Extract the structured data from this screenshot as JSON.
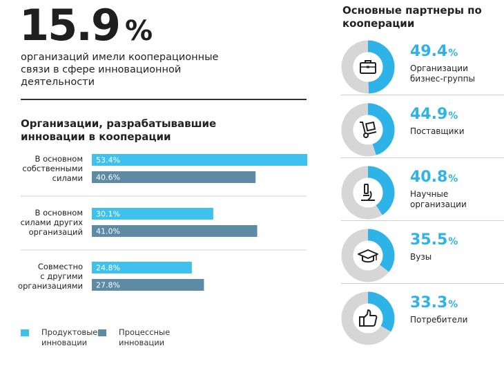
{
  "headline": {
    "value": "15.9",
    "percent_sign": "%",
    "text": "организаций имели кооперационные связи в сфере инновационной деятельности"
  },
  "chart_title": "Организации, разрабатывавшие инновации в кооперации",
  "legend": {
    "product": "Продуктовые инновации",
    "process": "Процессные инновации"
  },
  "colors": {
    "product": "#3fc1f0",
    "process": "#5e8aa4",
    "accent": "#2eb3e8",
    "donut_track": "#d6d6d6"
  },
  "chart_data": {
    "type": "bar",
    "orientation": "horizontal",
    "title": "Организации, разрабатывавшие инновации в кооперации",
    "categories": [
      "В основном собственными силами",
      "В основном силами других организаций",
      "Совместно с другими организациями"
    ],
    "category_lines": [
      [
        "В основном",
        "собственными",
        "силами"
      ],
      [
        "В основном",
        "силами других",
        "организаций"
      ],
      [
        "Совместно",
        "с другими",
        "организациями"
      ]
    ],
    "series": [
      {
        "name": "Продуктовые инновации",
        "values": [
          53.4,
          30.1,
          24.8
        ],
        "labels": [
          "53.4%",
          "30.1%",
          "24.8%"
        ]
      },
      {
        "name": "Процессные инновации",
        "values": [
          40.6,
          41.0,
          27.8
        ],
        "labels": [
          "40.6%",
          "41.0%",
          "27.8%"
        ]
      }
    ],
    "xlim": [
      0,
      53.4
    ]
  },
  "partners": {
    "title": "Основные партнеры по кооперации",
    "items": [
      {
        "value": 49.4,
        "value_text": "49.4",
        "percent_sign": "%",
        "label": "Организации бизнес-группы",
        "icon": "briefcase-icon"
      },
      {
        "value": 44.9,
        "value_text": "44.9",
        "percent_sign": "%",
        "label": "Поставщики",
        "icon": "hand-truck-icon"
      },
      {
        "value": 40.8,
        "value_text": "40.8",
        "percent_sign": "%",
        "label": "Научные организации",
        "icon": "microscope-icon"
      },
      {
        "value": 35.5,
        "value_text": "35.5",
        "percent_sign": "%",
        "label": "Вузы",
        "icon": "graduation-cap-icon"
      },
      {
        "value": 33.3,
        "value_text": "33.3",
        "percent_sign": "%",
        "label": "Потребители",
        "icon": "thumbs-up-icon"
      }
    ]
  }
}
